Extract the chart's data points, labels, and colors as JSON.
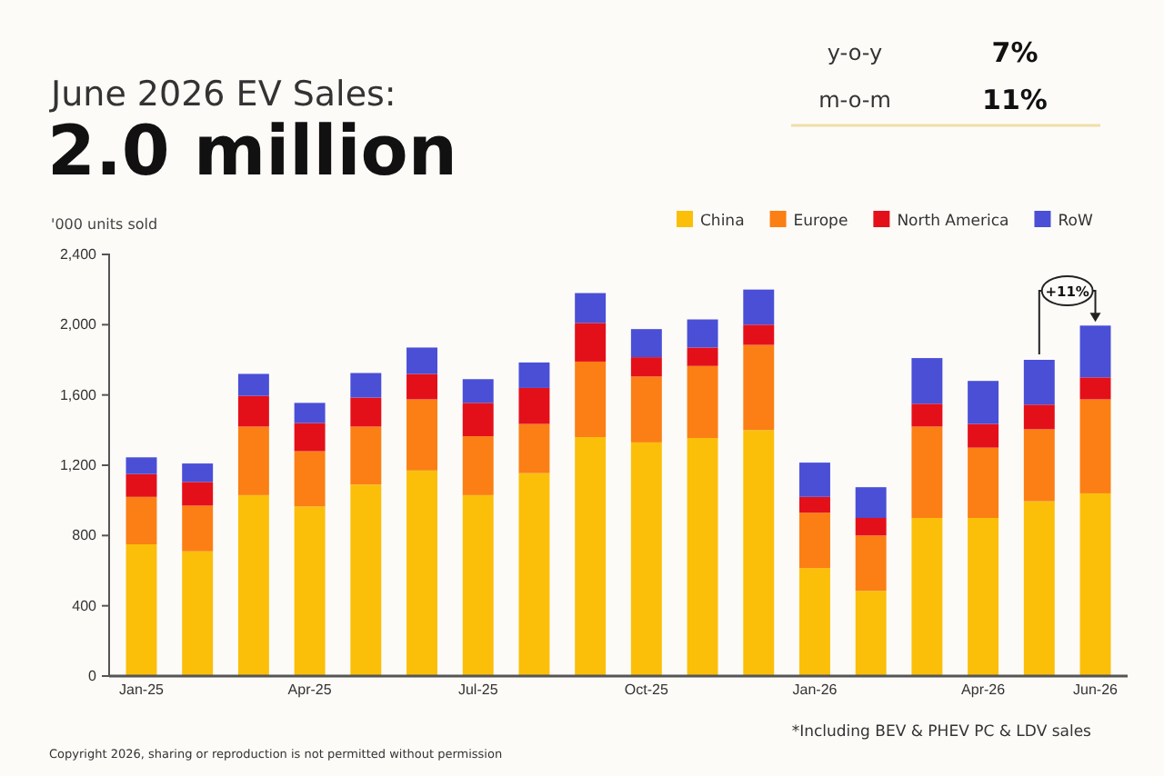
{
  "chart_data": {
    "type": "bar",
    "stacked": true,
    "title": "June 2026 EV Sales:",
    "subtitle": "2.0 million",
    "ylabel": "'000 units sold",
    "categories": [
      "Jan-25",
      null,
      null,
      "Apr-25",
      null,
      null,
      "Jul-25",
      null,
      null,
      "Oct-25",
      null,
      null,
      "Jan-26",
      null,
      null,
      "Apr-26",
      null,
      "Jun-26"
    ],
    "series": [
      {
        "name": "China",
        "color": "#fbbf0a",
        "values": [
          750,
          710,
          1030,
          965,
          1090,
          1170,
          1030,
          1155,
          1360,
          1330,
          1355,
          1400,
          615,
          485,
          900,
          900,
          995,
          1040
        ]
      },
      {
        "name": "Europe",
        "color": "#fb7f14",
        "values": [
          270,
          260,
          390,
          315,
          330,
          405,
          335,
          280,
          430,
          375,
          410,
          485,
          315,
          315,
          520,
          400,
          410,
          535
        ]
      },
      {
        "name": "North America",
        "color": "#e3101a",
        "values": [
          130,
          135,
          175,
          160,
          165,
          145,
          190,
          205,
          220,
          110,
          105,
          115,
          90,
          100,
          130,
          135,
          140,
          125
        ]
      },
      {
        "name": "RoW",
        "color": "#4a4fd6",
        "values": [
          95,
          105,
          125,
          115,
          140,
          150,
          135,
          145,
          170,
          160,
          160,
          200,
          195,
          175,
          260,
          245,
          255,
          295
        ]
      }
    ],
    "ylim": [
      0,
      2400
    ],
    "yticks": [
      0,
      400,
      800,
      {
        "value": 1200,
        "label": "1,200"
      },
      {
        "value": 1600,
        "label": "1,600"
      },
      {
        "value": 2000,
        "label": "2,000"
      },
      {
        "value": 2400,
        "label": "2,400"
      }
    ],
    "grid": false,
    "legend": "top right",
    "annotations": [
      "y-o-y",
      "7%",
      "m-o-m",
      "11%",
      "+11%",
      "*Including BEV & PHEV PC & LDV sales",
      "Copyright 2026, sharing or reproduction is not permitted without permission"
    ]
  }
}
